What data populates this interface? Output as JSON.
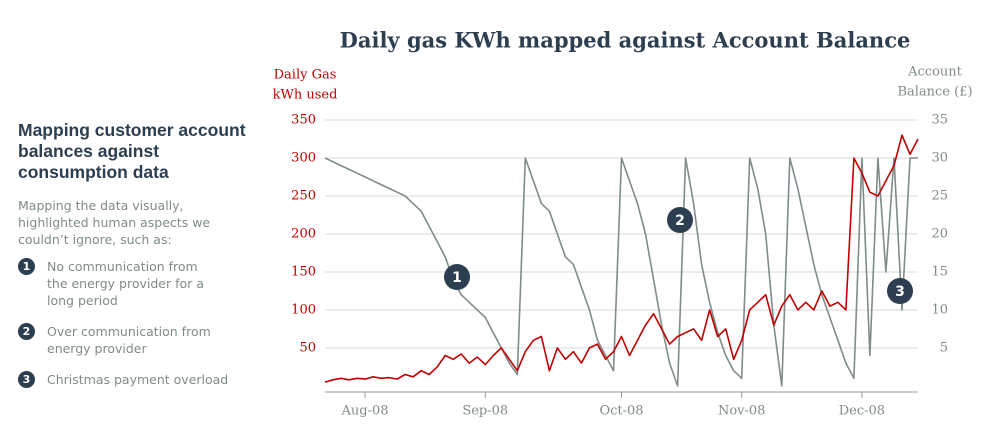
{
  "side_panel": {
    "heading": "Mapping customer account balances against consumption data",
    "intro": "Mapping the data visually, highlighted human aspects we couldn’t ignore, such as:",
    "items": [
      {
        "number": "1",
        "text": "No communication from the energy provider for a long period"
      },
      {
        "number": "2",
        "text": "Over communication from energy provider"
      },
      {
        "number": "3",
        "text": "Christmas payment overload"
      }
    ]
  },
  "chart_data": {
    "type": "line",
    "title": "Daily gas KWh mapped against Account Balance",
    "y_label": [
      "Daily Gas",
      "kWh used"
    ],
    "y2_label": [
      "Account",
      "Balance (£)"
    ],
    "annotations": [
      "1",
      "2",
      "3"
    ],
    "categories": [
      null,
      null,
      null,
      null,
      null,
      "Aug-08",
      null,
      null,
      null,
      null,
      null,
      null,
      null,
      null,
      null,
      null,
      null,
      null,
      null,
      null,
      "Sep-08",
      null,
      null,
      null,
      null,
      null,
      null,
      null,
      null,
      null,
      null,
      null,
      null,
      null,
      null,
      null,
      null,
      "Oct-08",
      null,
      null,
      null,
      null,
      null,
      null,
      null,
      null,
      null,
      null,
      null,
      null,
      null,
      null,
      "Nov-08",
      null,
      null,
      null,
      null,
      null,
      null,
      null,
      null,
      null,
      null,
      null,
      null,
      null,
      null,
      "Dec-08",
      null,
      null,
      null,
      null,
      null,
      null,
      null
    ],
    "series": [
      {
        "name": "Daily Gas kWh used",
        "color": "#c00000",
        "axis": "y",
        "values": [
          5,
          8,
          10,
          8,
          10,
          9,
          12,
          10,
          11,
          9,
          15,
          12,
          20,
          15,
          25,
          40,
          35,
          42,
          30,
          38,
          28,
          40,
          50,
          35,
          20,
          45,
          60,
          65,
          20,
          50,
          35,
          45,
          30,
          50,
          55,
          35,
          45,
          65,
          40,
          60,
          80,
          95,
          75,
          55,
          65,
          70,
          75,
          60,
          100,
          65,
          75,
          35,
          60,
          100,
          110,
          120,
          80,
          105,
          120,
          100,
          110,
          100,
          125,
          105,
          110,
          100,
          300,
          280,
          255,
          250,
          270,
          290,
          330,
          305,
          325
        ]
      },
      {
        "name": "Account Balance (£)",
        "color": "#7f8c8a",
        "axis": "y2",
        "values": [
          30,
          29.5,
          29,
          28.5,
          28,
          27.5,
          27,
          26.5,
          26,
          25.5,
          25,
          24,
          23,
          21,
          19,
          17,
          14,
          12,
          11,
          10,
          9,
          7,
          5,
          3,
          1.5,
          30,
          27,
          24,
          23,
          20,
          17,
          16,
          13,
          10,
          6,
          4,
          2,
          30,
          27,
          24,
          20,
          14,
          8,
          3,
          0,
          30,
          24,
          16,
          11,
          7,
          4,
          2,
          1,
          30,
          26,
          20,
          8,
          0,
          30,
          26,
          21,
          16,
          12,
          9,
          6,
          3,
          1,
          30,
          4,
          30,
          15,
          30,
          10,
          30,
          30
        ]
      }
    ],
    "ylim": [
      -8,
      350
    ],
    "yticks": [
      50,
      100,
      150,
      200,
      250,
      300,
      350
    ],
    "y2lim": [
      -0.8,
      35
    ],
    "y2ticks": [
      5,
      10,
      15,
      20,
      25,
      30,
      35
    ],
    "grid": true
  }
}
